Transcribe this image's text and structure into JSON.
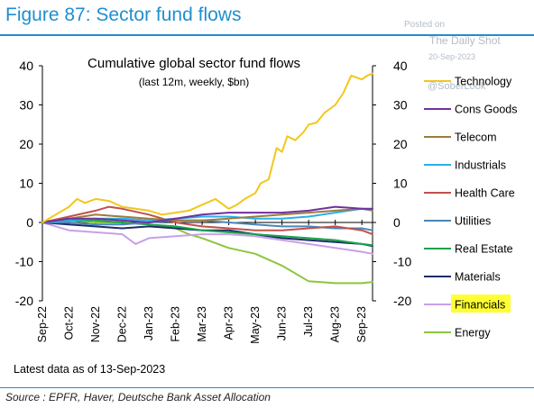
{
  "header": {
    "figure_title": "Figure 87: Sector fund flows"
  },
  "watermark": {
    "line1": "Posted on",
    "line2": "The Daily Shot",
    "line3": "20-Sep-2023",
    "line4": "@SoberLook"
  },
  "footer": {
    "source": "Source : EPFR, Haver, Deutsche Bank Asset Allocation"
  },
  "chart_data": {
    "type": "line",
    "title": "Cumulative global sector fund flows",
    "subtitle": "(last 12m, weekly, $bn)",
    "note": "Latest data as of 13-Sep-2023",
    "ylim": [
      -20,
      40
    ],
    "yticks": [
      -20,
      -10,
      0,
      10,
      20,
      30,
      40
    ],
    "x_tick_labels": [
      "Sep-22",
      "Oct-22",
      "Nov-22",
      "Dec-22",
      "Jan-23",
      "Feb-23",
      "Mar-23",
      "Apr-23",
      "May-23",
      "Jun-23",
      "Jul-23",
      "Aug-23",
      "Sep-23"
    ],
    "x_range": [
      0,
      12.4
    ],
    "grid": false,
    "legend_position": "right",
    "highlighted_legend": "Financials",
    "highlight_color": "#ffff33",
    "series": [
      {
        "name": "Technology",
        "color": "#f2c71b",
        "x": [
          0,
          0.5,
          1,
          1.3,
          1.6,
          2,
          2.5,
          3,
          3.5,
          4,
          4.5,
          5,
          5.5,
          6,
          6.5,
          7,
          7.3,
          7.6,
          8,
          8.2,
          8.5,
          8.8,
          9,
          9.2,
          9.5,
          9.8,
          10,
          10.3,
          10.6,
          11,
          11.3,
          11.6,
          12,
          12.2,
          12.4
        ],
        "y": [
          0,
          2,
          4,
          6,
          5,
          6,
          5.5,
          4,
          3.5,
          3,
          2,
          2.5,
          3,
          4.5,
          6,
          3.5,
          4.5,
          6,
          7.5,
          10,
          11,
          19,
          18,
          22,
          21,
          23,
          25,
          25.5,
          28,
          30,
          33,
          37.5,
          36.5,
          37.5,
          38
        ]
      },
      {
        "name": "Cons Goods",
        "color": "#7030a0",
        "x": [
          0,
          1,
          2,
          3,
          4,
          5,
          6,
          7,
          8,
          9,
          10,
          11,
          12,
          12.4
        ],
        "y": [
          0,
          1,
          1,
          0.5,
          0,
          1,
          2,
          2.5,
          2.5,
          2.5,
          3,
          4,
          3.5,
          3.5
        ]
      },
      {
        "name": "Telecom",
        "color": "#9c7c3c",
        "x": [
          0,
          1,
          2,
          3,
          4,
          5,
          6,
          7,
          8,
          9,
          10,
          11,
          12,
          12.4
        ],
        "y": [
          0,
          1,
          2,
          1.5,
          1,
          0.5,
          0.5,
          1,
          1.5,
          2,
          2.5,
          3,
          3.5,
          3.2
        ]
      },
      {
        "name": "Industrials",
        "color": "#2bb0e8",
        "x": [
          0,
          1,
          2,
          3,
          4,
          5,
          6,
          7,
          8,
          9,
          10,
          11,
          12,
          12.4
        ],
        "y": [
          0,
          0.5,
          1,
          1,
          0.5,
          1,
          1.5,
          1.5,
          1,
          1,
          1.5,
          2.5,
          3.5,
          3
        ]
      },
      {
        "name": "Health Care",
        "color": "#c0504d",
        "x": [
          0,
          1,
          2,
          2.5,
          3,
          4,
          5,
          6,
          7,
          8,
          9,
          10,
          11,
          12,
          12.4
        ],
        "y": [
          0,
          1.5,
          3,
          4,
          3.5,
          2,
          0,
          -1,
          -1.5,
          -2,
          -2,
          -1.5,
          -1,
          -2,
          -3
        ]
      },
      {
        "name": "Utilities",
        "color": "#4a86b8",
        "x": [
          0,
          1,
          2,
          3,
          4,
          5,
          6,
          7,
          8,
          9,
          10,
          11,
          12,
          12.4
        ],
        "y": [
          0,
          0,
          -0.5,
          -0.5,
          0,
          0.5,
          0.5,
          0,
          -0.5,
          -1,
          -1,
          -1.5,
          -1.5,
          -2
        ]
      },
      {
        "name": "Real Estate",
        "color": "#1aa34a",
        "x": [
          0,
          1,
          2,
          3,
          4,
          5,
          6,
          7,
          8,
          9,
          10,
          11,
          12,
          12.4
        ],
        "y": [
          0,
          0.5,
          0.5,
          0,
          -0.5,
          -1,
          -2,
          -2.5,
          -3,
          -3.5,
          -4,
          -4.5,
          -5.5,
          -5.8
        ]
      },
      {
        "name": "Materials",
        "color": "#1f2b6b",
        "x": [
          0,
          1,
          2,
          3,
          4,
          5,
          6,
          7,
          8,
          9,
          10,
          11,
          12,
          12.4
        ],
        "y": [
          0,
          -0.5,
          -1,
          -1.5,
          -1,
          -1.5,
          -2,
          -2,
          -3,
          -4,
          -4.5,
          -5,
          -5.5,
          -6
        ]
      },
      {
        "name": "Financials",
        "color": "#c8a0e8",
        "x": [
          0,
          1,
          2,
          3,
          3.5,
          4,
          5,
          6,
          7,
          8,
          9,
          10,
          11,
          12,
          12.4
        ],
        "y": [
          0,
          -2,
          -2.5,
          -3,
          -5.5,
          -4,
          -3.5,
          -3,
          -3,
          -3.5,
          -4.5,
          -5.5,
          -6.5,
          -7.5,
          -8
        ]
      },
      {
        "name": "Energy",
        "color": "#8cc63e",
        "x": [
          0,
          1,
          2,
          3,
          4,
          5,
          5.5,
          6,
          7,
          8,
          9,
          10,
          11,
          12,
          12.4
        ],
        "y": [
          0,
          0.5,
          0,
          0,
          -0.5,
          -1.5,
          -3,
          -4,
          -6.5,
          -8,
          -11,
          -15,
          -15.5,
          -15.5,
          -15.2
        ]
      }
    ]
  }
}
